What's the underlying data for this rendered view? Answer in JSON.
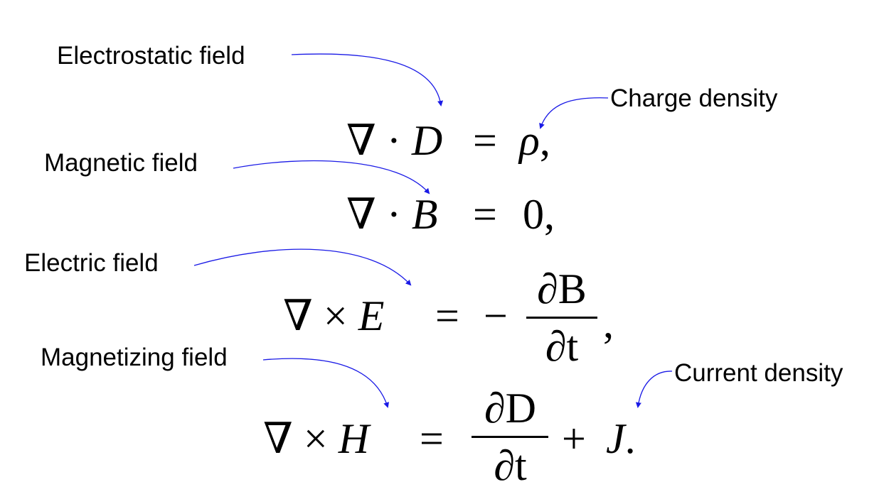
{
  "annotations": {
    "electrostatic_field": "Electrostatic field",
    "charge_density": "Charge density",
    "magnetic_field": "Magnetic field",
    "electric_field": "Electric field",
    "magnetizing_field": "Magnetizing field",
    "current_density": "Current density"
  },
  "equations": {
    "gauss_electric": {
      "lhs": "∇ · D",
      "equals": "=",
      "rhs": "ρ",
      "trail": ","
    },
    "gauss_magnetic": {
      "lhs": "∇ · B",
      "equals": "=",
      "rhs": "0",
      "trail": ","
    },
    "faraday": {
      "lhs": "∇ × E",
      "equals": "=",
      "sign": "−",
      "num": "∂B",
      "den": "∂t",
      "trail": ","
    },
    "ampere": {
      "lhs": "∇ × H",
      "equals": "=",
      "num": "∂D",
      "den": "∂t",
      "plus": "+",
      "rhs": "J",
      "trail": "."
    }
  },
  "colors": {
    "arrow": "#1a1ae6",
    "text": "#000000"
  }
}
